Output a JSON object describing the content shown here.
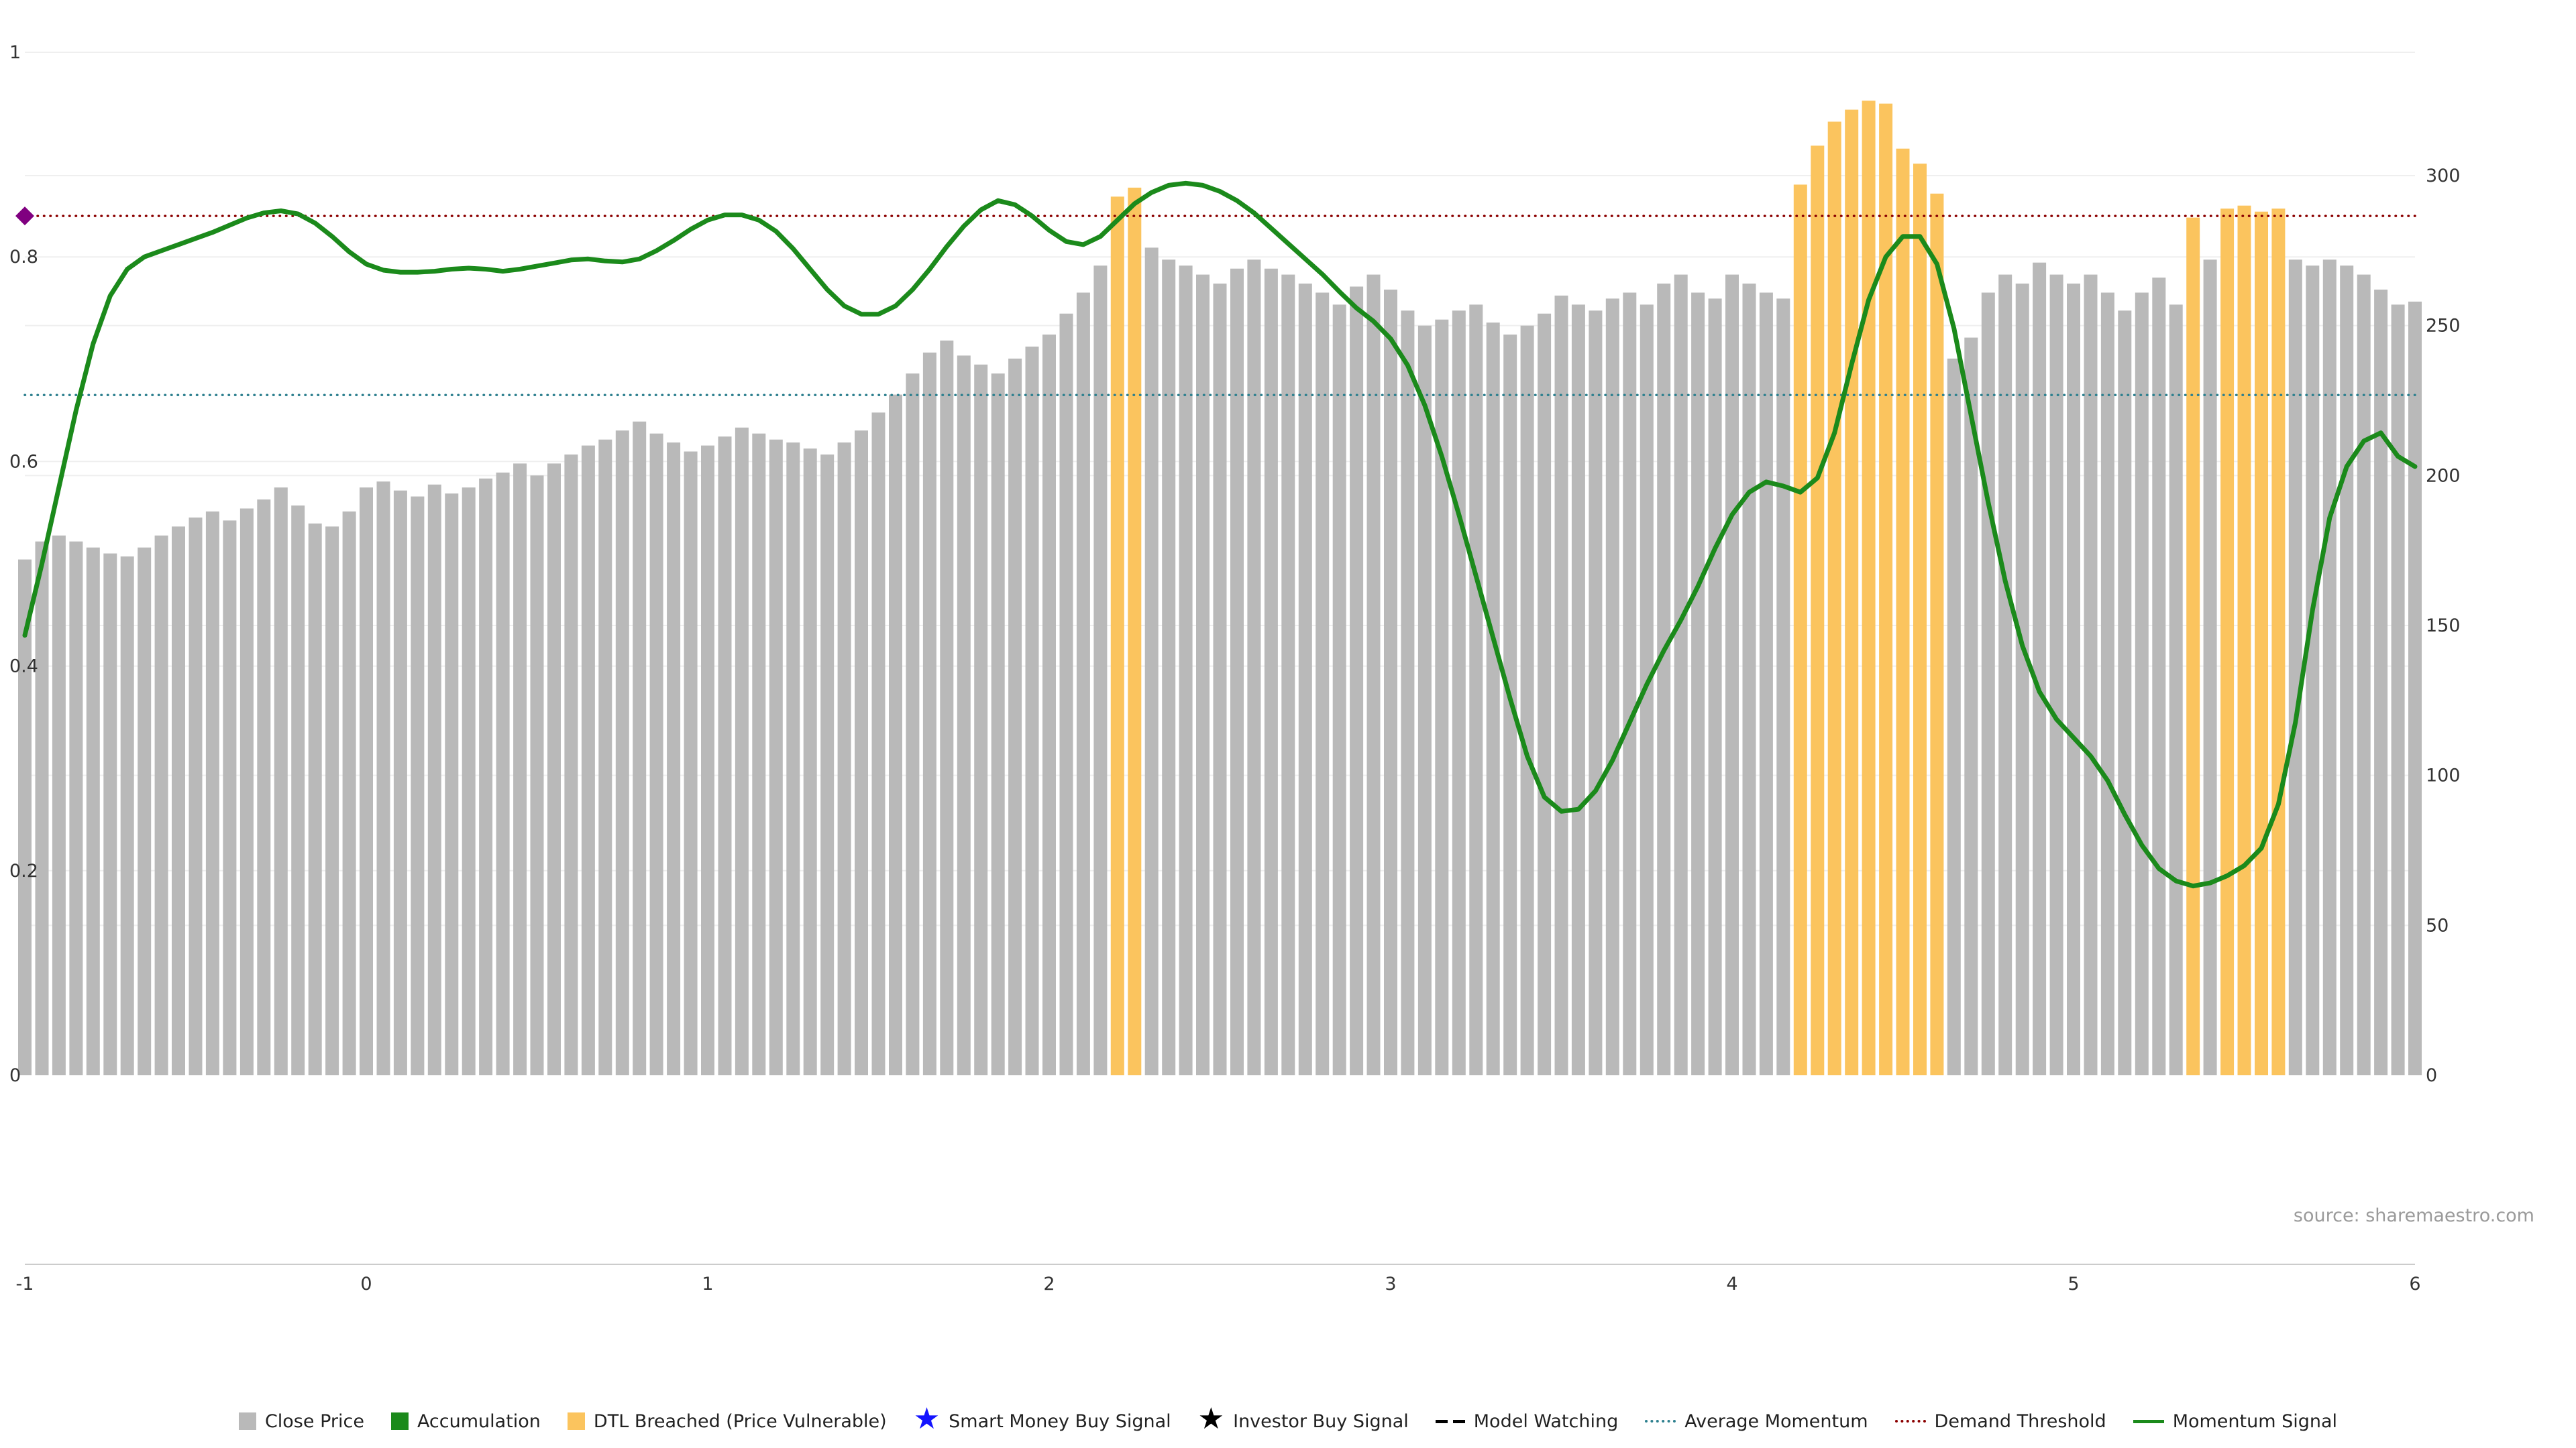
{
  "source_note": "source: sharemaestro.com",
  "colors": {
    "close_price": "#b9b9b9",
    "accumulation": "#1b8a1b",
    "dtl_breached": "#fbc45e",
    "smart_money": "#1414ff",
    "investor": "#000000",
    "model_watching": "#000000",
    "average_momentum": "#2e808f",
    "demand_threshold": "#8b0000",
    "momentum_signal": "#1b8a1b",
    "diamond": "#800080",
    "axis_line": "#cccccc",
    "grid": "#efefef",
    "tick_label": "#333333"
  },
  "legend": [
    {
      "label": "Close Price",
      "marker": "square",
      "color_key": "close_price"
    },
    {
      "label": "Accumulation",
      "marker": "square",
      "color_key": "accumulation"
    },
    {
      "label": "DTL Breached (Price Vulnerable)",
      "marker": "square",
      "color_key": "dtl_breached"
    },
    {
      "label": "Smart Money Buy Signal",
      "marker": "star",
      "color_key": "smart_money"
    },
    {
      "label": "Investor Buy Signal",
      "marker": "star",
      "color_key": "investor"
    },
    {
      "label": "Model Watching",
      "marker": "dashed-line",
      "color_key": "model_watching"
    },
    {
      "label": "Average Momentum",
      "marker": "dotted-line",
      "color_key": "average_momentum"
    },
    {
      "label": "Demand Threshold",
      "marker": "dotted-line",
      "color_key": "demand_threshold"
    },
    {
      "label": "Momentum Signal",
      "marker": "solid-line",
      "color_key": "momentum_signal"
    }
  ],
  "chart_data": {
    "type": "bar",
    "title": "",
    "xlabel": "",
    "ylabel": "",
    "x_axis": {
      "min": -1,
      "max": 6,
      "ticks": [
        -1,
        0,
        1,
        2,
        3,
        4,
        5,
        6
      ]
    },
    "left_y_axis": {
      "ticks": [
        0,
        0.2,
        0.4,
        0.6,
        0.8,
        1
      ],
      "min": -0.19,
      "max": 1.05
    },
    "right_y_axis": {
      "ticks": [
        0,
        50,
        100,
        150,
        200,
        250,
        300
      ],
      "min": 0,
      "max": 341
    },
    "average_momentum": 0.665,
    "demand_threshold": 0.84,
    "demand_threshold_marker": {
      "x": -1,
      "y": 0.84,
      "shape": "diamond"
    },
    "bars": {
      "name": "Close Price",
      "axis": "right",
      "x_start": -1,
      "x_step": 0.05,
      "values": [
        172,
        178,
        180,
        178,
        176,
        174,
        173,
        176,
        180,
        183,
        186,
        188,
        185,
        189,
        192,
        196,
        190,
        184,
        183,
        188,
        196,
        198,
        195,
        193,
        197,
        194,
        196,
        199,
        201,
        204,
        200,
        204,
        207,
        210,
        212,
        215,
        218,
        214,
        211,
        208,
        210,
        213,
        216,
        214,
        212,
        211,
        209,
        207,
        211,
        215,
        221,
        227,
        234,
        241,
        245,
        240,
        237,
        234,
        239,
        243,
        247,
        254,
        261,
        270,
        293,
        296,
        276,
        272,
        270,
        267,
        264,
        269,
        272,
        269,
        267,
        264,
        261,
        257,
        263,
        267,
        262,
        255,
        250,
        252,
        255,
        257,
        251,
        247,
        250,
        254,
        260,
        257,
        255,
        259,
        261,
        257,
        264,
        267,
        261,
        259,
        267,
        264,
        261,
        259,
        297,
        310,
        318,
        322,
        325,
        324,
        309,
        304,
        294,
        239,
        246,
        261,
        267,
        264,
        271,
        267,
        264,
        267,
        261,
        255,
        261,
        266,
        257,
        286,
        272,
        289,
        290,
        288,
        289,
        272,
        270,
        272,
        270,
        267,
        262,
        257,
        258
      ],
      "dtl_breached_x": [
        2.2,
        2.25,
        4.2,
        4.25,
        4.3,
        4.35,
        4.4,
        4.45,
        4.5,
        4.55,
        4.6,
        5.35,
        5.45,
        5.5,
        5.55,
        5.6
      ]
    },
    "momentum": {
      "name": "Momentum Signal",
      "axis": "left",
      "x_start": -1,
      "x_step": 0.05,
      "values": [
        0.43,
        0.5,
        0.575,
        0.65,
        0.715,
        0.762,
        0.788,
        0.8,
        0.806,
        0.812,
        0.818,
        0.824,
        0.831,
        0.838,
        0.843,
        0.845,
        0.842,
        0.833,
        0.82,
        0.805,
        0.793,
        0.787,
        0.785,
        0.785,
        0.786,
        0.788,
        0.789,
        0.788,
        0.786,
        0.788,
        0.791,
        0.794,
        0.797,
        0.798,
        0.796,
        0.795,
        0.798,
        0.806,
        0.816,
        0.827,
        0.836,
        0.841,
        0.841,
        0.836,
        0.825,
        0.808,
        0.788,
        0.768,
        0.752,
        0.744,
        0.744,
        0.752,
        0.768,
        0.788,
        0.81,
        0.83,
        0.846,
        0.855,
        0.851,
        0.84,
        0.826,
        0.815,
        0.812,
        0.82,
        0.836,
        0.852,
        0.863,
        0.87,
        0.872,
        0.87,
        0.864,
        0.855,
        0.843,
        0.828,
        0.813,
        0.798,
        0.783,
        0.766,
        0.75,
        0.737,
        0.72,
        0.694,
        0.655,
        0.605,
        0.548,
        0.488,
        0.428,
        0.368,
        0.312,
        0.272,
        0.258,
        0.26,
        0.278,
        0.308,
        0.345,
        0.382,
        0.415,
        0.445,
        0.478,
        0.515,
        0.548,
        0.57,
        0.58,
        0.576,
        0.57,
        0.584,
        0.628,
        0.695,
        0.758,
        0.8,
        0.82,
        0.82,
        0.793,
        0.73,
        0.645,
        0.56,
        0.483,
        0.42,
        0.375,
        0.348,
        0.33,
        0.312,
        0.288,
        0.255,
        0.225,
        0.202,
        0.19,
        0.185,
        0.188,
        0.195,
        0.205,
        0.222,
        0.265,
        0.345,
        0.455,
        0.545,
        0.595,
        0.62,
        0.628,
        0.605,
        0.595
      ]
    }
  }
}
